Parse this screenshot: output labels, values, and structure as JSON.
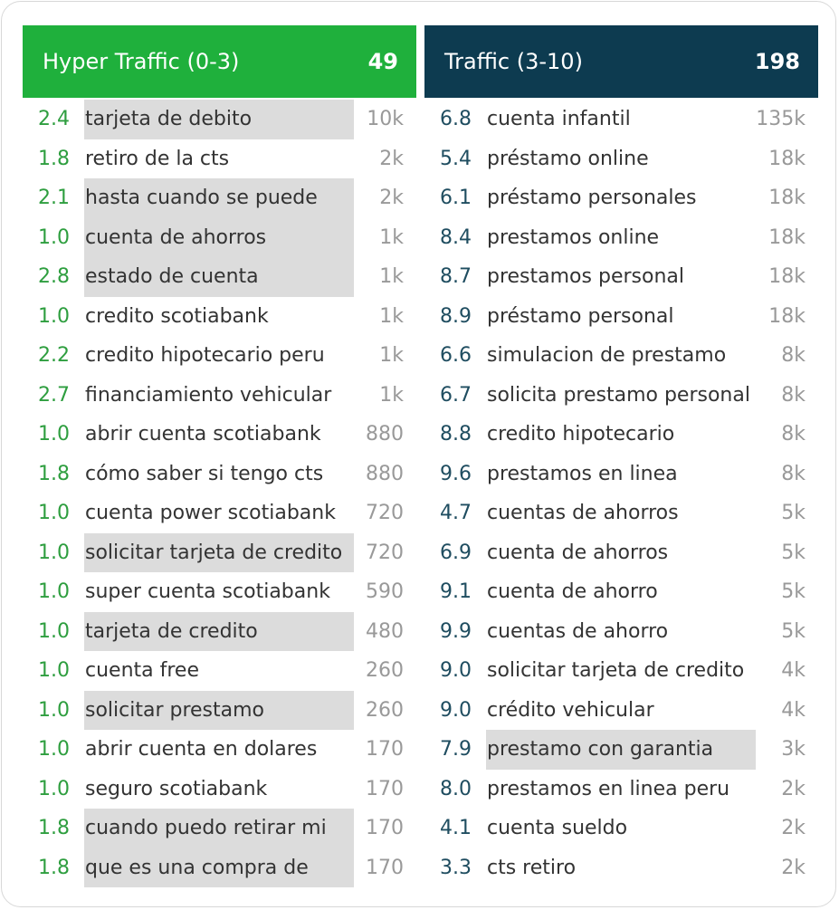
{
  "panels": [
    {
      "title": "Hyper Traffic (0-3)",
      "count": 49,
      "header_color": "#1fb03c",
      "score_color": "#2e9e3f",
      "rows": [
        {
          "score": "2.4",
          "keyword": "tarjeta de debito",
          "volume": "10k",
          "highlighted": true
        },
        {
          "score": "1.8",
          "keyword": "retiro de la cts",
          "volume": "2k",
          "highlighted": false
        },
        {
          "score": "2.1",
          "keyword": "hasta cuando se puede",
          "volume": "2k",
          "highlighted": true
        },
        {
          "score": "1.0",
          "keyword": "cuenta de ahorros",
          "volume": "1k",
          "highlighted": true
        },
        {
          "score": "2.8",
          "keyword": "estado de cuenta",
          "volume": "1k",
          "highlighted": true
        },
        {
          "score": "1.0",
          "keyword": "credito scotiabank",
          "volume": "1k",
          "highlighted": false
        },
        {
          "score": "2.2",
          "keyword": "credito hipotecario peru",
          "volume": "1k",
          "highlighted": false
        },
        {
          "score": "2.7",
          "keyword": "financiamiento vehicular",
          "volume": "1k",
          "highlighted": false
        },
        {
          "score": "1.0",
          "keyword": "abrir cuenta scotiabank",
          "volume": "880",
          "highlighted": false
        },
        {
          "score": "1.8",
          "keyword": "cómo saber si tengo cts",
          "volume": "880",
          "highlighted": false
        },
        {
          "score": "1.0",
          "keyword": "cuenta power scotiabank",
          "volume": "720",
          "highlighted": false
        },
        {
          "score": "1.0",
          "keyword": "solicitar tarjeta de credito",
          "volume": "720",
          "highlighted": true
        },
        {
          "score": "1.0",
          "keyword": "super cuenta scotiabank",
          "volume": "590",
          "highlighted": false
        },
        {
          "score": "1.0",
          "keyword": "tarjeta de credito",
          "volume": "480",
          "highlighted": true
        },
        {
          "score": "1.0",
          "keyword": "cuenta free",
          "volume": "260",
          "highlighted": false
        },
        {
          "score": "1.0",
          "keyword": "solicitar prestamo",
          "volume": "260",
          "highlighted": true
        },
        {
          "score": "1.0",
          "keyword": "abrir cuenta en dolares",
          "volume": "170",
          "highlighted": false
        },
        {
          "score": "1.0",
          "keyword": "seguro scotiabank",
          "volume": "170",
          "highlighted": false
        },
        {
          "score": "1.8",
          "keyword": "cuando puedo retirar mi",
          "volume": "170",
          "highlighted": true
        },
        {
          "score": "1.8",
          "keyword": "que es una compra de",
          "volume": "170",
          "highlighted": true
        }
      ]
    },
    {
      "title": "Traffic (3-10)",
      "count": 198,
      "header_color": "#0d3b50",
      "score_color": "#1f4d60",
      "rows": [
        {
          "score": "6.8",
          "keyword": "cuenta infantil",
          "volume": "135k",
          "highlighted": false
        },
        {
          "score": "5.4",
          "keyword": "préstamo online",
          "volume": "18k",
          "highlighted": false
        },
        {
          "score": "6.1",
          "keyword": "préstamo personales",
          "volume": "18k",
          "highlighted": false
        },
        {
          "score": "8.4",
          "keyword": "prestamos online",
          "volume": "18k",
          "highlighted": false
        },
        {
          "score": "8.7",
          "keyword": "prestamos personal",
          "volume": "18k",
          "highlighted": false
        },
        {
          "score": "8.9",
          "keyword": "préstamo personal",
          "volume": "18k",
          "highlighted": false
        },
        {
          "score": "6.6",
          "keyword": "simulacion de prestamo",
          "volume": "8k",
          "highlighted": false
        },
        {
          "score": "6.7",
          "keyword": "solicita prestamo personal",
          "volume": "8k",
          "highlighted": false
        },
        {
          "score": "8.8",
          "keyword": "credito hipotecario",
          "volume": "8k",
          "highlighted": false
        },
        {
          "score": "9.6",
          "keyword": "prestamos en linea",
          "volume": "8k",
          "highlighted": false
        },
        {
          "score": "4.7",
          "keyword": "cuentas de ahorros",
          "volume": "5k",
          "highlighted": false
        },
        {
          "score": "6.9",
          "keyword": "cuenta de ahorros",
          "volume": "5k",
          "highlighted": false
        },
        {
          "score": "9.1",
          "keyword": "cuenta de ahorro",
          "volume": "5k",
          "highlighted": false
        },
        {
          "score": "9.9",
          "keyword": "cuentas de ahorro",
          "volume": "5k",
          "highlighted": false
        },
        {
          "score": "9.0",
          "keyword": "solicitar tarjeta de credito",
          "volume": "4k",
          "highlighted": false
        },
        {
          "score": "9.0",
          "keyword": "crédito vehicular",
          "volume": "4k",
          "highlighted": false
        },
        {
          "score": "7.9",
          "keyword": "prestamo con garantia",
          "volume": "3k",
          "highlighted": true
        },
        {
          "score": "8.0",
          "keyword": "prestamos en linea peru",
          "volume": "2k",
          "highlighted": false
        },
        {
          "score": "4.1",
          "keyword": "cuenta sueldo",
          "volume": "2k",
          "highlighted": false
        },
        {
          "score": "3.3",
          "keyword": "cts retiro",
          "volume": "2k",
          "highlighted": false
        }
      ]
    }
  ]
}
